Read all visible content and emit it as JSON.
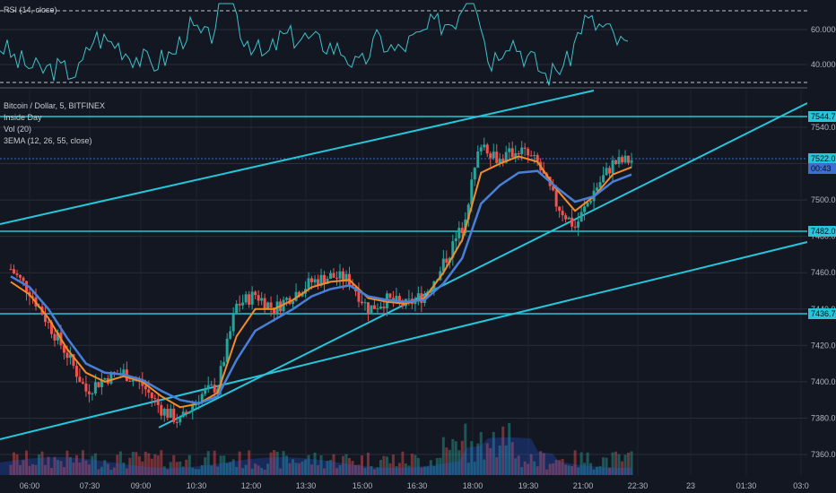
{
  "rsi_panel": {
    "legend": "RSI (14, close)",
    "ticks": [
      "60.0000",
      "40.0000"
    ],
    "upper_band": 70,
    "lower_band": 30,
    "line_color": "#3fc1c9"
  },
  "main_panel": {
    "legend": [
      "Bitcoin / Dollar, 5, BITFINEX",
      "Inside Day",
      "Vol (20)",
      "3EMA (12, 26, 55, close)"
    ],
    "price_ticks": [
      "7540.0",
      "7520.0",
      "7500.0",
      "7480.0",
      "7460.0",
      "7440.0",
      "7420.0",
      "7400.0",
      "7380.0",
      "7360.0"
    ],
    "price_tags": [
      {
        "label": "7544.7",
        "color": "#26c6da"
      },
      {
        "label": "7522.0",
        "color": "#26c6da"
      },
      {
        "label": "00:43",
        "color": "#3d6fd0"
      },
      {
        "label": "7482.0",
        "color": "#26c6da"
      },
      {
        "label": "7436.7",
        "color": "#26c6da"
      }
    ],
    "time_ticks": [
      "06:00",
      "07:30",
      "09:00",
      "10:30",
      "12:00",
      "13:30",
      "15:00",
      "16:30",
      "18:00",
      "19:30",
      "21:00",
      "22:30",
      "23",
      "01:30",
      "03:0"
    ]
  },
  "chart_data": {
    "type": "candlestick",
    "symbol": "Bitcoin / Dollar",
    "interval": "5",
    "exchange": "BITFINEX",
    "time_axis": [
      "06:00",
      "07:30",
      "09:00",
      "10:30",
      "12:00",
      "13:30",
      "15:00",
      "16:30",
      "18:00",
      "19:30",
      "21:00",
      "22:30"
    ],
    "price_range": [
      7355,
      7555
    ],
    "close_price_path": [
      {
        "t": "05:30",
        "p": 7462
      },
      {
        "t": "06:00",
        "p": 7450
      },
      {
        "t": "06:30",
        "p": 7432
      },
      {
        "t": "07:00",
        "p": 7415
      },
      {
        "t": "07:30",
        "p": 7395
      },
      {
        "t": "08:00",
        "p": 7402
      },
      {
        "t": "08:30",
        "p": 7405
      },
      {
        "t": "09:00",
        "p": 7398
      },
      {
        "t": "09:30",
        "p": 7385
      },
      {
        "t": "10:00",
        "p": 7378
      },
      {
        "t": "10:30",
        "p": 7392
      },
      {
        "t": "11:00",
        "p": 7398
      },
      {
        "t": "11:30",
        "p": 7442
      },
      {
        "t": "12:00",
        "p": 7448
      },
      {
        "t": "12:30",
        "p": 7440
      },
      {
        "t": "13:00",
        "p": 7448
      },
      {
        "t": "13:30",
        "p": 7455
      },
      {
        "t": "14:00",
        "p": 7458
      },
      {
        "t": "14:30",
        "p": 7456
      },
      {
        "t": "15:00",
        "p": 7440
      },
      {
        "t": "15:30",
        "p": 7445
      },
      {
        "t": "16:00",
        "p": 7442
      },
      {
        "t": "16:30",
        "p": 7448
      },
      {
        "t": "17:00",
        "p": 7465
      },
      {
        "t": "17:30",
        "p": 7485
      },
      {
        "t": "18:00",
        "p": 7532
      },
      {
        "t": "18:30",
        "p": 7522
      },
      {
        "t": "19:00",
        "p": 7528
      },
      {
        "t": "19:30",
        "p": 7520
      },
      {
        "t": "20:00",
        "p": 7498
      },
      {
        "t": "20:30",
        "p": 7485
      },
      {
        "t": "21:00",
        "p": 7505
      },
      {
        "t": "21:30",
        "p": 7520
      },
      {
        "t": "22:00",
        "p": 7522
      }
    ],
    "ema_12_path": [
      7455,
      7448,
      7435,
      7418,
      7405,
      7400,
      7403,
      7400,
      7392,
      7386,
      7388,
      7394,
      7425,
      7440,
      7440,
      7445,
      7452,
      7455,
      7456,
      7446,
      7444,
      7443,
      7446,
      7460,
      7478,
      7515,
      7520,
      7524,
      7521,
      7506,
      7494,
      7502,
      7514,
      7518
    ],
    "ema_26_path": [
      7458,
      7452,
      7440,
      7424,
      7410,
      7405,
      7404,
      7401,
      7395,
      7390,
      7388,
      7392,
      7412,
      7428,
      7434,
      7440,
      7447,
      7451,
      7453,
      7447,
      7445,
      7444,
      7445,
      7454,
      7468,
      7498,
      7508,
      7515,
      7516,
      7507,
      7499,
      7502,
      7510,
      7514
    ],
    "support_resistance_levels": [
      7544.7,
      7482.0,
      7436.7
    ],
    "last_price": 7522.0
  }
}
